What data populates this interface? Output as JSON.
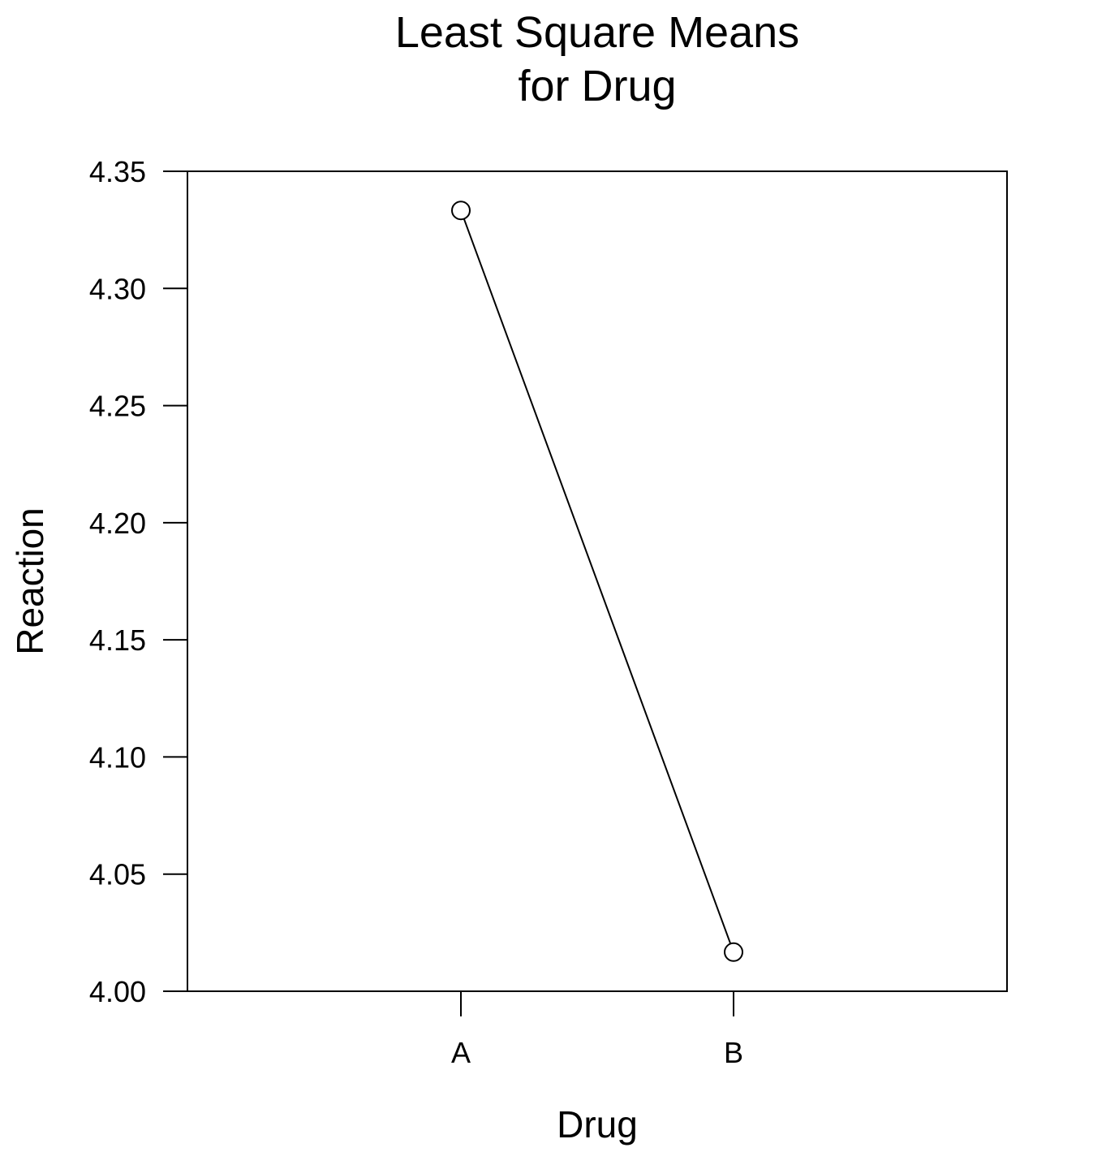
{
  "chart_data": {
    "type": "line",
    "title": [
      "Least Square Means",
      "for Drug"
    ],
    "xlabel": "Drug",
    "ylabel": "Reaction",
    "categories": [
      "A",
      "B"
    ],
    "values": [
      4.3333,
      4.0167
    ],
    "ylim": [
      4.0,
      4.35
    ],
    "yticks": [
      "4.00",
      "4.05",
      "4.10",
      "4.15",
      "4.20",
      "4.25",
      "4.30",
      "4.35"
    ],
    "grid": false,
    "legend": "none",
    "marker": "open-circle",
    "line_color": "#000000"
  }
}
